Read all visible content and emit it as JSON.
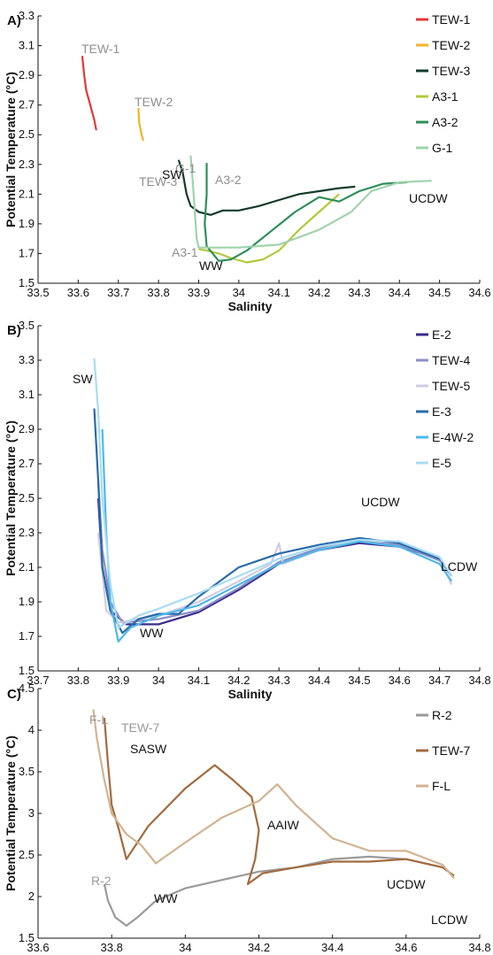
{
  "chart_data": [
    {
      "type": "line",
      "panel_label": "A)",
      "xlabel": "Salinity",
      "ylabel": "Potential Temperature (°C)",
      "xlim": [
        33.5,
        34.6
      ],
      "ylim": [
        1.5,
        3.3
      ],
      "xticks": [
        "33.5",
        "33.6",
        "33.7",
        "33.8",
        "33.9",
        "34",
        "34.1",
        "34.2",
        "34.3",
        "34.4",
        "34.5",
        "34.6"
      ],
      "yticks": [
        "1.5",
        "1.7",
        "1.9",
        "2.1",
        "2.3",
        "2.5",
        "2.7",
        "2.9",
        "3.1",
        "3.3"
      ],
      "legend_position": "top-right",
      "series": [
        {
          "name": "TEW-1",
          "color": "#e03a3a",
          "points": [
            [
              33.61,
              3.03
            ],
            [
              33.615,
              2.9
            ],
            [
              33.62,
              2.8
            ],
            [
              33.63,
              2.7
            ],
            [
              33.64,
              2.6
            ],
            [
              33.645,
              2.53
            ]
          ]
        },
        {
          "name": "TEW-2",
          "color": "#f0b429",
          "points": [
            [
              33.75,
              2.68
            ],
            [
              33.752,
              2.58
            ],
            [
              33.758,
              2.5
            ],
            [
              33.762,
              2.46
            ]
          ]
        },
        {
          "name": "TEW-3",
          "color": "#123d29",
          "points": [
            [
              33.85,
              2.33
            ],
            [
              33.86,
              2.25
            ],
            [
              33.87,
              2.1
            ],
            [
              33.88,
              2.02
            ],
            [
              33.9,
              1.98
            ],
            [
              33.93,
              1.96
            ],
            [
              33.96,
              1.99
            ],
            [
              34.0,
              1.99
            ],
            [
              34.05,
              2.02
            ],
            [
              34.1,
              2.06
            ],
            [
              34.15,
              2.1
            ],
            [
              34.2,
              2.12
            ],
            [
              34.25,
              2.14
            ],
            [
              34.29,
              2.15
            ]
          ]
        },
        {
          "name": "A3-1",
          "color": "#b4c83a",
          "points": [
            [
              33.9,
              1.73
            ],
            [
              33.92,
              1.72
            ],
            [
              33.95,
              1.7
            ],
            [
              33.98,
              1.67
            ],
            [
              34.02,
              1.64
            ],
            [
              34.06,
              1.66
            ],
            [
              34.1,
              1.72
            ],
            [
              34.15,
              1.86
            ],
            [
              34.2,
              1.98
            ],
            [
              34.25,
              2.1
            ]
          ]
        },
        {
          "name": "A3-2",
          "color": "#2e8f5a",
          "points": [
            [
              33.92,
              2.31
            ],
            [
              33.92,
              2.1
            ],
            [
              33.915,
              1.9
            ],
            [
              33.92,
              1.75
            ],
            [
              33.95,
              1.65
            ],
            [
              33.98,
              1.66
            ],
            [
              34.02,
              1.72
            ],
            [
              34.08,
              1.85
            ],
            [
              34.14,
              1.98
            ],
            [
              34.2,
              2.08
            ],
            [
              34.25,
              2.05
            ],
            [
              34.3,
              2.12
            ],
            [
              34.36,
              2.17
            ],
            [
              34.42,
              2.18
            ]
          ]
        },
        {
          "name": "G-1",
          "color": "#9fd3ab",
          "points": [
            [
              33.88,
              2.36
            ],
            [
              33.885,
              2.2
            ],
            [
              33.89,
              2.0
            ],
            [
              33.895,
              1.8
            ],
            [
              33.9,
              1.74
            ],
            [
              33.95,
              1.74
            ],
            [
              34.0,
              1.74
            ],
            [
              34.1,
              1.76
            ],
            [
              34.2,
              1.86
            ],
            [
              34.28,
              1.98
            ],
            [
              34.33,
              2.12
            ],
            [
              34.4,
              2.18
            ],
            [
              34.48,
              2.19
            ]
          ]
        }
      ],
      "annotations": [
        {
          "text": "TEW-1",
          "color": "#8f8f8f"
        },
        {
          "text": "TEW-2",
          "color": "#8f8f8f"
        },
        {
          "text": "TEW-3",
          "color": "#8f8f8f"
        },
        {
          "text": "G-1",
          "color": "#8f8f8f"
        },
        {
          "text": "A3-2",
          "color": "#8f8f8f"
        },
        {
          "text": "SW",
          "color": "#111111"
        },
        {
          "text": "A3-1",
          "color": "#8f8f8f"
        },
        {
          "text": "WW",
          "color": "#111111"
        },
        {
          "text": "UCDW",
          "color": "#111111"
        }
      ]
    },
    {
      "type": "line",
      "panel_label": "B)",
      "xlabel": "Salinity",
      "ylabel": "Potential Temperature (°C)",
      "xlim": [
        33.7,
        34.8
      ],
      "ylim": [
        1.5,
        3.5
      ],
      "xticks": [
        "33.7",
        "33.8",
        "33.9",
        "34",
        "34.1",
        "34.2",
        "34.3",
        "34.4",
        "34.5",
        "34.6",
        "34.7",
        "34.8"
      ],
      "yticks": [
        "1.5",
        "1.7",
        "1.9",
        "2.1",
        "2.3",
        "2.5",
        "2.7",
        "2.9",
        "3.1",
        "3.3",
        "3.5"
      ],
      "legend_position": "top-right",
      "series": [
        {
          "name": "E-2",
          "color": "#3a2a8f",
          "points": [
            [
              33.85,
              2.5
            ],
            [
              33.86,
              2.1
            ],
            [
              33.88,
              1.85
            ],
            [
              33.92,
              1.77
            ],
            [
              34.0,
              1.77
            ],
            [
              34.1,
              1.84
            ],
            [
              34.2,
              1.97
            ],
            [
              34.3,
              2.12
            ],
            [
              34.4,
              2.2
            ],
            [
              34.5,
              2.24
            ],
            [
              34.6,
              2.22
            ],
            [
              34.7,
              2.15
            ],
            [
              34.73,
              2.05
            ]
          ]
        },
        {
          "name": "TEW-4",
          "color": "#8a8fc7",
          "points": [
            [
              33.85,
              2.6
            ],
            [
              33.86,
              2.2
            ],
            [
              33.88,
              1.9
            ],
            [
              33.91,
              1.78
            ],
            [
              34.0,
              1.8
            ],
            [
              34.1,
              1.85
            ],
            [
              34.2,
              1.98
            ],
            [
              34.3,
              2.13
            ],
            [
              34.4,
              2.21
            ],
            [
              34.5,
              2.25
            ],
            [
              34.6,
              2.23
            ],
            [
              34.7,
              2.14
            ],
            [
              34.73,
              2.05
            ]
          ]
        },
        {
          "name": "TEW-5",
          "color": "#d0cce3",
          "points": [
            [
              33.85,
              2.3
            ],
            [
              33.87,
              1.85
            ],
            [
              33.9,
              1.78
            ],
            [
              34.0,
              1.82
            ],
            [
              34.1,
              1.9
            ],
            [
              34.2,
              2.02
            ],
            [
              34.28,
              2.12
            ],
            [
              34.3,
              2.24
            ],
            [
              34.31,
              2.12
            ],
            [
              34.4,
              2.2
            ],
            [
              34.5,
              2.26
            ],
            [
              34.6,
              2.25
            ],
            [
              34.7,
              2.15
            ],
            [
              34.73,
              2.0
            ]
          ]
        },
        {
          "name": "E-3",
          "color": "#2a6aa8",
          "points": [
            [
              33.84,
              3.02
            ],
            [
              33.85,
              2.6
            ],
            [
              33.86,
              2.1
            ],
            [
              33.88,
              1.85
            ],
            [
              33.91,
              1.72
            ],
            [
              33.95,
              1.8
            ],
            [
              34.0,
              1.83
            ],
            [
              34.05,
              1.83
            ],
            [
              34.1,
              1.93
            ],
            [
              34.2,
              2.1
            ],
            [
              34.3,
              2.18
            ],
            [
              34.4,
              2.23
            ],
            [
              34.5,
              2.27
            ],
            [
              34.6,
              2.24
            ],
            [
              34.7,
              2.15
            ],
            [
              34.73,
              2.05
            ]
          ]
        },
        {
          "name": "E-4W-2",
          "color": "#4fb8e8",
          "points": [
            [
              33.86,
              2.9
            ],
            [
              33.87,
              2.3
            ],
            [
              33.88,
              1.9
            ],
            [
              33.9,
              1.67
            ],
            [
              33.93,
              1.75
            ],
            [
              34.0,
              1.82
            ],
            [
              34.1,
              1.88
            ],
            [
              34.2,
              2.0
            ],
            [
              34.3,
              2.12
            ],
            [
              34.4,
              2.2
            ],
            [
              34.5,
              2.25
            ],
            [
              34.6,
              2.22
            ],
            [
              34.7,
              2.12
            ],
            [
              34.73,
              2.02
            ]
          ]
        },
        {
          "name": "E-5",
          "color": "#a9dcf2",
          "points": [
            [
              33.84,
              3.31
            ],
            [
              33.85,
              3.0
            ],
            [
              33.86,
              2.5
            ],
            [
              33.88,
              2.0
            ],
            [
              33.9,
              1.75
            ],
            [
              33.95,
              1.82
            ],
            [
              34.0,
              1.86
            ],
            [
              34.1,
              1.95
            ],
            [
              34.2,
              2.05
            ],
            [
              34.3,
              2.15
            ],
            [
              34.4,
              2.22
            ],
            [
              34.5,
              2.26
            ],
            [
              34.6,
              2.25
            ],
            [
              34.7,
              2.16
            ],
            [
              34.73,
              2.05
            ]
          ]
        }
      ],
      "annotations": [
        {
          "text": "SW",
          "color": "#111111"
        },
        {
          "text": "UCDW",
          "color": "#111111"
        },
        {
          "text": "LCDW",
          "color": "#111111"
        },
        {
          "text": "WW",
          "color": "#111111"
        }
      ]
    },
    {
      "type": "line",
      "panel_label": "C)",
      "xlabel": "Salinity",
      "ylabel": "Potential Temperature (°C)",
      "xlim": [
        33.6,
        34.8
      ],
      "ylim": [
        1.5,
        4.5
      ],
      "xticks": [
        "33.6",
        "33.8",
        "34",
        "34.2",
        "34.4",
        "34.6",
        "34.8"
      ],
      "yticks": [
        "1.5",
        "2",
        "2.5",
        "3",
        "3.5",
        "4",
        "4.5"
      ],
      "legend_position": "top-right",
      "series": [
        {
          "name": "R-2",
          "color": "#9a9a9a",
          "points": [
            [
              33.78,
              2.15
            ],
            [
              33.79,
              1.95
            ],
            [
              33.81,
              1.75
            ],
            [
              33.84,
              1.65
            ],
            [
              33.87,
              1.75
            ],
            [
              33.92,
              1.95
            ],
            [
              34.0,
              2.1
            ],
            [
              34.1,
              2.2
            ],
            [
              34.2,
              2.3
            ],
            [
              34.3,
              2.35
            ],
            [
              34.4,
              2.45
            ],
            [
              34.5,
              2.48
            ],
            [
              34.6,
              2.45
            ],
            [
              34.7,
              2.35
            ],
            [
              34.73,
              2.25
            ]
          ]
        },
        {
          "name": "TEW-7",
          "color": "#a26b3f",
          "points": [
            [
              33.78,
              4.15
            ],
            [
              33.79,
              3.6
            ],
            [
              33.8,
              3.1
            ],
            [
              33.82,
              2.8
            ],
            [
              33.84,
              2.45
            ],
            [
              33.9,
              2.85
            ],
            [
              34.0,
              3.3
            ],
            [
              34.08,
              3.58
            ],
            [
              34.13,
              3.4
            ],
            [
              34.18,
              3.2
            ],
            [
              34.2,
              2.8
            ],
            [
              34.19,
              2.45
            ],
            [
              34.17,
              2.15
            ],
            [
              34.21,
              2.28
            ],
            [
              34.3,
              2.35
            ],
            [
              34.4,
              2.42
            ],
            [
              34.5,
              2.42
            ],
            [
              34.6,
              2.45
            ],
            [
              34.7,
              2.35
            ],
            [
              34.73,
              2.25
            ]
          ]
        },
        {
          "name": "F-L",
          "color": "#d2b391",
          "points": [
            [
              33.75,
              4.25
            ],
            [
              33.76,
              3.9
            ],
            [
              33.78,
              3.4
            ],
            [
              33.8,
              3.0
            ],
            [
              33.84,
              2.75
            ],
            [
              33.88,
              2.62
            ],
            [
              33.92,
              2.4
            ],
            [
              34.0,
              2.65
            ],
            [
              34.1,
              2.95
            ],
            [
              34.2,
              3.15
            ],
            [
              34.25,
              3.35
            ],
            [
              34.3,
              3.1
            ],
            [
              34.35,
              2.9
            ],
            [
              34.4,
              2.7
            ],
            [
              34.5,
              2.55
            ],
            [
              34.6,
              2.55
            ],
            [
              34.7,
              2.38
            ],
            [
              34.73,
              2.22
            ]
          ]
        }
      ],
      "annotations": [
        {
          "text": "F-L",
          "color": "#9a9a9a"
        },
        {
          "text": "TEW-7",
          "color": "#9a9a9a"
        },
        {
          "text": "SASW",
          "color": "#111111"
        },
        {
          "text": "AAIW",
          "color": "#111111"
        },
        {
          "text": "UCDW",
          "color": "#111111"
        },
        {
          "text": "LCDW",
          "color": "#111111"
        },
        {
          "text": "R-2",
          "color": "#9a9a9a"
        },
        {
          "text": "WW",
          "color": "#111111"
        }
      ]
    }
  ]
}
